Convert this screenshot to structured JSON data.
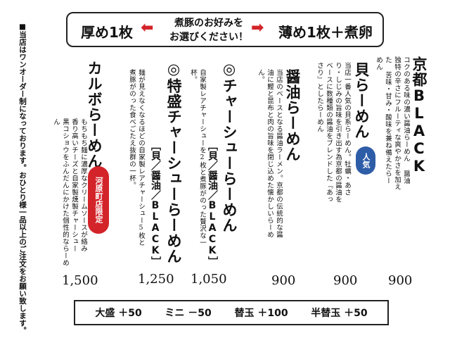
{
  "banner": {
    "left": "厚め1枚",
    "center_line1": "煮豚のお好みを",
    "center_line2": "お選びください！",
    "right": "薄め1枚＋煮卵",
    "arrow_color": "#d3242a"
  },
  "side_note": "■当店はワンオーダー制になっております。おひとり様一品以上のご注文をお願い致します。",
  "menu": {
    "kyoto": {
      "title": "京都BLACK",
      "desc": "コクのある味の濃い醤油らーめん 醤油独特の辛さにフルーティな爽やかさを加えた 苦味・甘み・酸味を兼ね備えたらーめん",
      "price": "900"
    },
    "kai": {
      "title": "貝らーめん",
      "badge": "人気",
      "desc": "当店一番人気の貝系らーめん。牡蠣・あさり・しじみの旨味を引き出す為京都の醤油をベースに数種類の醤油をブレンドした『あっさり』としたらーめん",
      "price": "900"
    },
    "shoyu": {
      "title": "醤油らーめん",
      "desc": "当店のベースとなる醤油ラーメン。京都の伝統的な醤油に鰹と昆布と肉の旨味を閉じ込めた懐かしいらーめん。",
      "price": "900"
    },
    "chashu": {
      "title": "◎チャーシューらーめん",
      "sub": "［貝／醤油／BLACK］",
      "desc": "自家製レアチャーシューを2枚と煮豚がのった贅沢な一杯。",
      "price": "1,050"
    },
    "tokumori": {
      "title": "◎特盛チャーシューらーめん",
      "sub": "［貝／醤油／BLACK］",
      "desc": "麺が見えなくなるほどの自家製レアチャーシュー5枚と煮豚がのった食べごたえ抜群の一杯。",
      "price": "1,250"
    },
    "carbo": {
      "title": "カルボらーめん",
      "badge": "河原町店限定",
      "desc": "もちもち麺に濃厚なクリームソースが絡み 香り高いチーズと自家製燻製チャーシュー 黒コショウをふんだんにかけた個性的ならーめん",
      "price": "1,500"
    }
  },
  "options": [
    "大盛 ＋50",
    "ミニ －50",
    "替玉 ＋100",
    "半替玉 ＋50"
  ],
  "colors": {
    "red": "#d3242a",
    "blue": "#2e5da8"
  }
}
